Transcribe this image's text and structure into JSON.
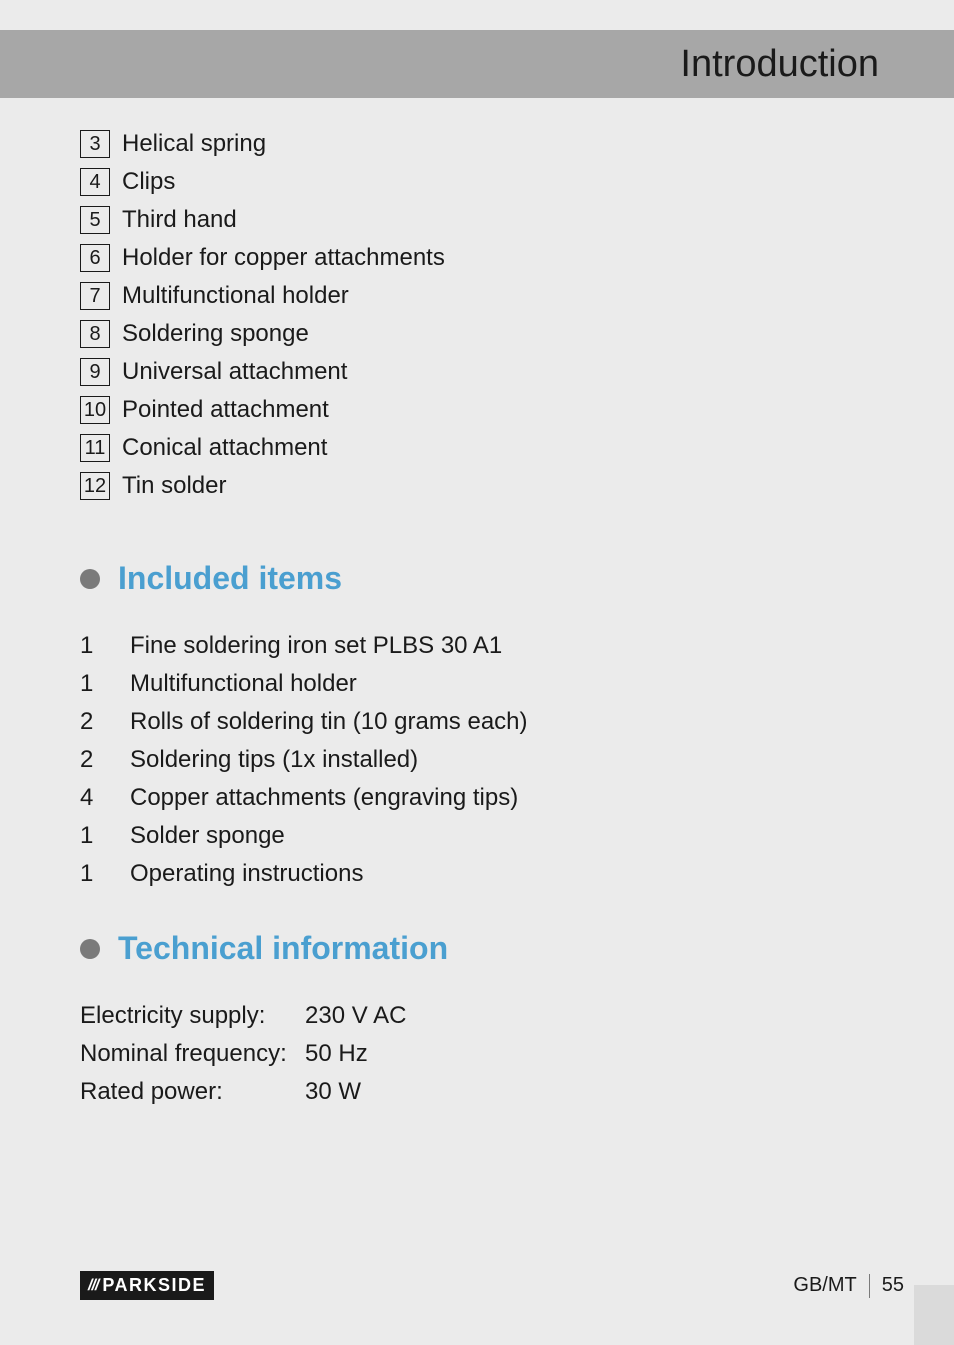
{
  "header": {
    "title": "Introduction"
  },
  "parts_list": [
    {
      "num": "3",
      "label": "Helical spring"
    },
    {
      "num": "4",
      "label": "Clips"
    },
    {
      "num": "5",
      "label": "Third hand"
    },
    {
      "num": "6",
      "label": "Holder for copper attachments"
    },
    {
      "num": "7",
      "label": "Multifunctional holder"
    },
    {
      "num": "8",
      "label": "Soldering sponge"
    },
    {
      "num": "9",
      "label": "Universal attachment"
    },
    {
      "num": "10",
      "label": "Pointed attachment"
    },
    {
      "num": "11",
      "label": "Conical attachment"
    },
    {
      "num": "12",
      "label": "Tin solder"
    }
  ],
  "included_section": {
    "heading": "Included items",
    "items": [
      {
        "qty": "1",
        "label": "Fine soldering iron set PLBS 30 A1"
      },
      {
        "qty": "1",
        "label": "Multifunctional holder"
      },
      {
        "qty": "2",
        "label": "Rolls of soldering tin (10 grams each)"
      },
      {
        "qty": "2",
        "label": "Soldering tips (1x installed)"
      },
      {
        "qty": "4",
        "label": "Copper attachments (engraving tips)"
      },
      {
        "qty": "1",
        "label": "Solder sponge"
      },
      {
        "qty": "1",
        "label": "Operating instructions"
      }
    ]
  },
  "technical_section": {
    "heading": "Technical information",
    "rows": [
      {
        "label": "Electricity supply:",
        "value": "230 V AC"
      },
      {
        "label": "Nominal frequency:",
        "value": "50 Hz"
      },
      {
        "label": "Rated power:",
        "value": "30 W"
      }
    ]
  },
  "footer": {
    "logo_stripes": "///",
    "logo_text": "PARKSIDE",
    "page_region": "GB/MT",
    "page_number": "55"
  },
  "colors": {
    "background": "#ebebeb",
    "header_bar": "#a7a7a7",
    "text": "#1a1a1a",
    "section_heading": "#4a9fd0",
    "bullet": "#7a7a7a",
    "logo_bg": "#1a1a1a",
    "logo_text": "#ffffff"
  },
  "typography": {
    "body_fontsize": 24,
    "header_title_fontsize": 38,
    "section_heading_fontsize": 32,
    "footer_fontsize": 20
  }
}
